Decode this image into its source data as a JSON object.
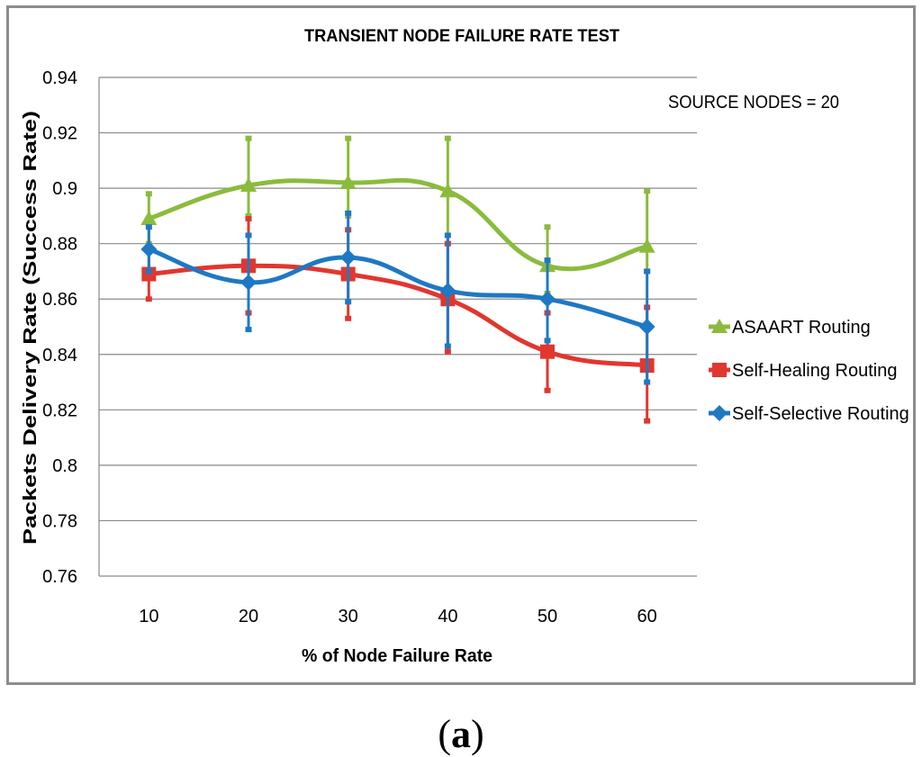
{
  "chart_data": {
    "type": "line",
    "title": "TRANSIENT NODE FAILURE RATE TEST",
    "annotation": "SOURCE NODES = 20",
    "xlabel": "% of Node Failure Rate",
    "ylabel": "Packets Delivery Rate (Success Rate)",
    "categories": [
      "10",
      "20",
      "30",
      "40",
      "50",
      "60"
    ],
    "ylim": [
      0.76,
      0.94
    ],
    "yticks": [
      0.76,
      0.78,
      0.8,
      0.82,
      0.84,
      0.86,
      0.88,
      0.9,
      0.92,
      0.94
    ],
    "ytick_labels": [
      "0.76",
      "0.78",
      "0.8",
      "0.82",
      "0.84",
      "0.86",
      "0.88",
      "0.9",
      "0.92",
      "0.94"
    ],
    "grid": true,
    "legend_position": "right",
    "series": [
      {
        "name": "ASAART Routing",
        "color": "#8bbb3c",
        "marker": "triangle",
        "values": [
          0.889,
          0.901,
          0.902,
          0.899,
          0.872,
          0.879
        ],
        "error_low": [
          0.88,
          0.89,
          0.89,
          0.88,
          0.862,
          0.87
        ],
        "error_high": [
          0.898,
          0.918,
          0.918,
          0.918,
          0.886,
          0.899
        ]
      },
      {
        "name": "Self-Healing Routing",
        "color": "#e0372f",
        "marker": "square",
        "values": [
          0.869,
          0.872,
          0.869,
          0.86,
          0.841,
          0.836
        ],
        "error_low": [
          0.86,
          0.855,
          0.853,
          0.841,
          0.827,
          0.816
        ],
        "error_high": [
          0.879,
          0.889,
          0.885,
          0.88,
          0.855,
          0.857
        ]
      },
      {
        "name": "Self-Selective Routing",
        "color": "#1f78c4",
        "marker": "diamond",
        "values": [
          0.878,
          0.866,
          0.875,
          0.863,
          0.86,
          0.85
        ],
        "error_low": [
          0.87,
          0.849,
          0.859,
          0.843,
          0.845,
          0.83
        ],
        "error_high": [
          0.886,
          0.883,
          0.891,
          0.883,
          0.874,
          0.87
        ]
      }
    ]
  },
  "caption": {
    "open": "(",
    "label": "a",
    "close": ")"
  }
}
